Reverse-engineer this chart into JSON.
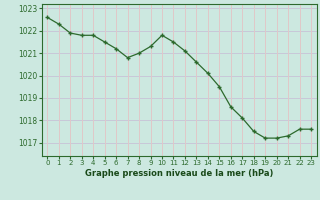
{
  "x": [
    0,
    1,
    2,
    3,
    4,
    5,
    6,
    7,
    8,
    9,
    10,
    11,
    12,
    13,
    14,
    15,
    16,
    17,
    18,
    19,
    20,
    21,
    22,
    23
  ],
  "y": [
    1022.6,
    1022.3,
    1021.9,
    1021.8,
    1021.8,
    1021.5,
    1021.2,
    1020.8,
    1021.0,
    1021.3,
    1021.8,
    1021.5,
    1021.1,
    1020.6,
    1020.1,
    1019.5,
    1018.6,
    1018.1,
    1017.5,
    1017.2,
    1017.2,
    1017.3,
    1017.6,
    1017.6
  ],
  "ylabel_ticks": [
    1017,
    1018,
    1019,
    1020,
    1021,
    1022,
    1023
  ],
  "xlabel_ticks": [
    0,
    1,
    2,
    3,
    4,
    5,
    6,
    7,
    8,
    9,
    10,
    11,
    12,
    13,
    14,
    15,
    16,
    17,
    18,
    19,
    20,
    21,
    22,
    23
  ],
  "line_color": "#2d6a2d",
  "marker": "+",
  "bg_color": "#cce8e0",
  "hgrid_color": "#c8c8d8",
  "vgrid_color": "#e0c8c8",
  "xlabel": "Graphe pression niveau de la mer (hPa)",
  "xlabel_color": "#1a4a1a",
  "axis_color": "#2d6a2d",
  "tick_color": "#2d6a2d",
  "ylim": [
    1016.4,
    1023.2
  ],
  "xlim": [
    -0.5,
    23.5
  ]
}
